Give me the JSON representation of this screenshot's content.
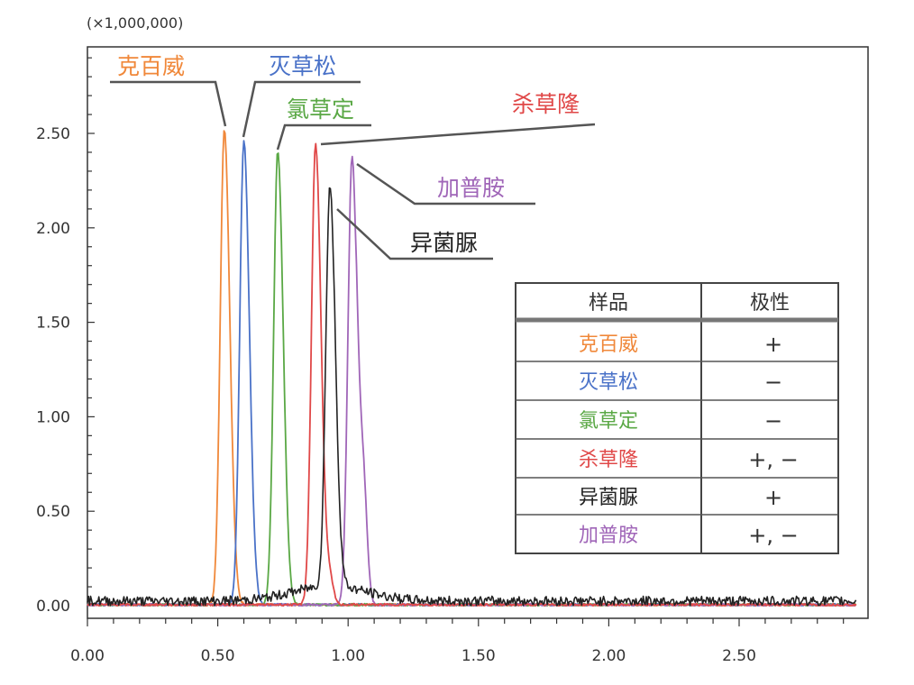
{
  "chart_data": {
    "type": "line",
    "y_scale_label": "(×1,000,000)",
    "xlim": [
      0,
      2.95
    ],
    "ylim": [
      0,
      3.0
    ],
    "x_ticks": [
      "0.00",
      "0.50",
      "1.00",
      "1.50",
      "2.00",
      "2.50"
    ],
    "y_ticks": [
      "0.00",
      "0.50",
      "1.00",
      "1.50",
      "2.00",
      "2.50"
    ],
    "grid": false,
    "series": [
      {
        "name": "克百威",
        "color": "#f0883a",
        "peak_x": 0.525,
        "peak_y": 2.52,
        "polarity": "+"
      },
      {
        "name": "灭草松",
        "color": "#4a72c8",
        "peak_x": 0.6,
        "peak_y": 2.46,
        "polarity": "−"
      },
      {
        "name": "氯草定",
        "color": "#5aa845",
        "peak_x": 0.73,
        "peak_y": 2.4,
        "polarity": "−"
      },
      {
        "name": "杀草隆",
        "color": "#e04848",
        "peak_x": 0.875,
        "peak_y": 2.44,
        "polarity": "+, −"
      },
      {
        "name": "异菌脲",
        "color": "#222222",
        "peak_x": 0.93,
        "peak_y": 2.12,
        "polarity": "+"
      },
      {
        "name": "加普胺",
        "color": "#a066b8",
        "peak_x": 1.015,
        "peak_y": 2.38,
        "polarity": "+, −"
      }
    ]
  },
  "legend_table": {
    "header_sample": "样品",
    "header_polarity": "极性"
  }
}
